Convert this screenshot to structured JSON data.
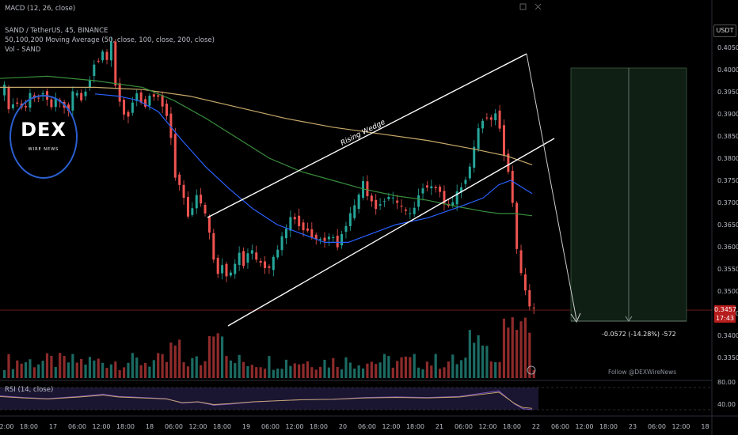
{
  "header": {
    "macd": "MACD (12, 26, close)",
    "symbol": "SAND / TetherUS, 45, BINANCE",
    "ma": "50,100,200 Moving Average (50, close, 100, close, 200, close)",
    "vol": "Vol - SAND",
    "rsi": "RSI (14, close)"
  },
  "scale_button": "USDT",
  "price_badge": {
    "price": "0.3457",
    "timer": "17:43"
  },
  "logo": {
    "main": "DEX",
    "sub": "WIRE NEWS"
  },
  "watermark": "Follow @DEXWireNews",
  "measure_label": "-0.0572 (-14.28%) -572",
  "pattern_label": "Rising Wedge",
  "colors": {
    "up": "#26a69a",
    "down": "#ef5350",
    "ma50": "#2962ff",
    "ma100": "#388e3c",
    "ma200": "#c8a96a",
    "rsi": "#7e57c2"
  },
  "chart_data": {
    "type": "candlestick",
    "y_axis": {
      "ticks": [
        "0.4050",
        "0.4000",
        "0.3950",
        "0.3900",
        "0.3850",
        "0.3800",
        "0.3750",
        "0.3700",
        "0.3650",
        "0.3600",
        "0.3550",
        "0.3500",
        "0.3450",
        "0.3400",
        "0.3350"
      ],
      "ylim": [
        0.3315,
        0.4095
      ]
    },
    "x_axis": {
      "ticks": [
        "12:00",
        "18:00",
        "17",
        "06:00",
        "12:00",
        "18:00",
        "18",
        "06:00",
        "12:00",
        "18:00",
        "19",
        "06:00",
        "12:00",
        "18:00",
        "20",
        "06:00",
        "12:00",
        "18:00",
        "21",
        "06:00",
        "12:00",
        "18:00",
        "22",
        "06:00",
        "12:00",
        "18:00",
        "23",
        "06:00",
        "12:00",
        "18"
      ]
    },
    "rsi_axis": {
      "ticks": [
        "80.00",
        "40.00"
      ],
      "levels": [
        70,
        30
      ]
    },
    "last_price": 0.3457,
    "price_path": [
      [
        0,
        0.3935
      ],
      [
        8,
        0.3965
      ],
      [
        14,
        0.3905
      ],
      [
        20,
        0.393
      ],
      [
        26,
        0.392
      ],
      [
        34,
        0.391
      ],
      [
        40,
        0.3945
      ],
      [
        48,
        0.393
      ],
      [
        58,
        0.3955
      ],
      [
        66,
        0.391
      ],
      [
        72,
        0.3935
      ],
      [
        82,
        0.392
      ],
      [
        88,
        0.3905
      ],
      [
        96,
        0.3955
      ],
      [
        104,
        0.393
      ],
      [
        112,
        0.396
      ],
      [
        118,
        0.399
      ],
      [
        124,
        0.4035
      ],
      [
        130,
        0.401
      ],
      [
        134,
        0.406
      ],
      [
        138,
        0.402
      ],
      [
        142,
        0.408
      ],
      [
        146,
        0.401
      ],
      [
        150,
        0.394
      ],
      [
        156,
        0.3925
      ],
      [
        162,
        0.388
      ],
      [
        168,
        0.392
      ],
      [
        174,
        0.395
      ],
      [
        180,
        0.393
      ],
      [
        186,
        0.392
      ],
      [
        192,
        0.394
      ],
      [
        198,
        0.3945
      ],
      [
        206,
        0.393
      ],
      [
        212,
        0.3905
      ],
      [
        218,
        0.386
      ],
      [
        224,
        0.376
      ],
      [
        230,
        0.374
      ],
      [
        236,
        0.37
      ],
      [
        242,
        0.366
      ],
      [
        250,
        0.372
      ],
      [
        256,
        0.37
      ],
      [
        264,
        0.366
      ],
      [
        270,
        0.36
      ],
      [
        276,
        0.3535
      ],
      [
        284,
        0.356
      ],
      [
        290,
        0.353
      ],
      [
        298,
        0.355
      ],
      [
        304,
        0.359
      ],
      [
        310,
        0.356
      ],
      [
        318,
        0.36
      ],
      [
        326,
        0.357
      ],
      [
        334,
        0.356
      ],
      [
        342,
        0.355
      ],
      [
        350,
        0.358
      ],
      [
        356,
        0.361
      ],
      [
        362,
        0.363
      ],
      [
        368,
        0.366
      ],
      [
        374,
        0.367
      ],
      [
        380,
        0.365
      ],
      [
        388,
        0.364
      ],
      [
        394,
        0.363
      ],
      [
        400,
        0.362
      ],
      [
        408,
        0.3615
      ],
      [
        416,
        0.362
      ],
      [
        422,
        0.3625
      ],
      [
        430,
        0.36
      ],
      [
        436,
        0.364
      ],
      [
        442,
        0.366
      ],
      [
        448,
        0.368
      ],
      [
        454,
        0.37
      ],
      [
        460,
        0.375
      ],
      [
        466,
        0.372
      ],
      [
        472,
        0.37
      ],
      [
        478,
        0.369
      ],
      [
        484,
        0.37
      ],
      [
        490,
        0.371
      ],
      [
        496,
        0.3715
      ],
      [
        502,
        0.37
      ],
      [
        508,
        0.369
      ],
      [
        514,
        0.368
      ],
      [
        520,
        0.367
      ],
      [
        526,
        0.369
      ],
      [
        532,
        0.372
      ],
      [
        538,
        0.374
      ],
      [
        544,
        0.3735
      ],
      [
        550,
        0.373
      ],
      [
        556,
        0.374
      ],
      [
        562,
        0.37
      ],
      [
        568,
        0.369
      ],
      [
        574,
        0.37
      ],
      [
        580,
        0.372
      ],
      [
        586,
        0.374
      ],
      [
        592,
        0.376
      ],
      [
        598,
        0.379
      ],
      [
        604,
        0.385
      ],
      [
        610,
        0.388
      ],
      [
        616,
        0.39
      ],
      [
        622,
        0.388
      ],
      [
        628,
        0.3905
      ],
      [
        634,
        0.387
      ],
      [
        640,
        0.38
      ],
      [
        646,
        0.376
      ],
      [
        650,
        0.37
      ],
      [
        654,
        0.361
      ],
      [
        658,
        0.356
      ],
      [
        662,
        0.353
      ],
      [
        666,
        0.35
      ],
      [
        670,
        0.3475
      ],
      [
        674,
        0.3457
      ]
    ],
    "moving_averages": {
      "ma50": [
        [
          120,
          0.3945
        ],
        [
          150,
          0.394
        ],
        [
          175,
          0.393
        ],
        [
          200,
          0.3905
        ],
        [
          230,
          0.384
        ],
        [
          260,
          0.378
        ],
        [
          290,
          0.373
        ],
        [
          320,
          0.3685
        ],
        [
          350,
          0.365
        ],
        [
          380,
          0.363
        ],
        [
          410,
          0.361
        ],
        [
          440,
          0.361
        ],
        [
          470,
          0.363
        ],
        [
          500,
          0.365
        ],
        [
          540,
          0.3665
        ],
        [
          580,
          0.369
        ],
        [
          610,
          0.371
        ],
        [
          630,
          0.374
        ],
        [
          645,
          0.375
        ],
        [
          672,
          0.372
        ]
      ],
      "ma100": [
        [
          0,
          0.398
        ],
        [
          60,
          0.3985
        ],
        [
          120,
          0.3975
        ],
        [
          180,
          0.396
        ],
        [
          220,
          0.393
        ],
        [
          260,
          0.389
        ],
        [
          300,
          0.3845
        ],
        [
          340,
          0.38
        ],
        [
          380,
          0.377
        ],
        [
          420,
          0.375
        ],
        [
          460,
          0.373
        ],
        [
          500,
          0.3715
        ],
        [
          540,
          0.3705
        ],
        [
          580,
          0.369
        ],
        [
          610,
          0.368
        ],
        [
          630,
          0.3675
        ],
        [
          650,
          0.3675
        ],
        [
          672,
          0.367
        ]
      ],
      "ma200": [
        [
          0,
          0.396
        ],
        [
          60,
          0.396
        ],
        [
          120,
          0.396
        ],
        [
          180,
          0.3955
        ],
        [
          240,
          0.394
        ],
        [
          300,
          0.3915
        ],
        [
          360,
          0.389
        ],
        [
          420,
          0.387
        ],
        [
          480,
          0.3855
        ],
        [
          540,
          0.384
        ],
        [
          600,
          0.382
        ],
        [
          640,
          0.3805
        ],
        [
          672,
          0.3785
        ]
      ]
    },
    "volume_bars": 125,
    "rsi_path": [
      [
        0,
        55
      ],
      [
        30,
        52
      ],
      [
        60,
        50
      ],
      [
        100,
        54
      ],
      [
        130,
        58
      ],
      [
        150,
        54
      ],
      [
        180,
        52
      ],
      [
        210,
        50
      ],
      [
        230,
        42
      ],
      [
        250,
        44
      ],
      [
        270,
        38
      ],
      [
        290,
        40
      ],
      [
        320,
        44
      ],
      [
        350,
        46
      ],
      [
        380,
        48
      ],
      [
        420,
        49
      ],
      [
        460,
        52
      ],
      [
        500,
        53
      ],
      [
        540,
        52
      ],
      [
        580,
        54
      ],
      [
        610,
        60
      ],
      [
        630,
        64
      ],
      [
        640,
        52
      ],
      [
        650,
        40
      ],
      [
        660,
        32
      ],
      [
        672,
        30
      ]
    ]
  }
}
